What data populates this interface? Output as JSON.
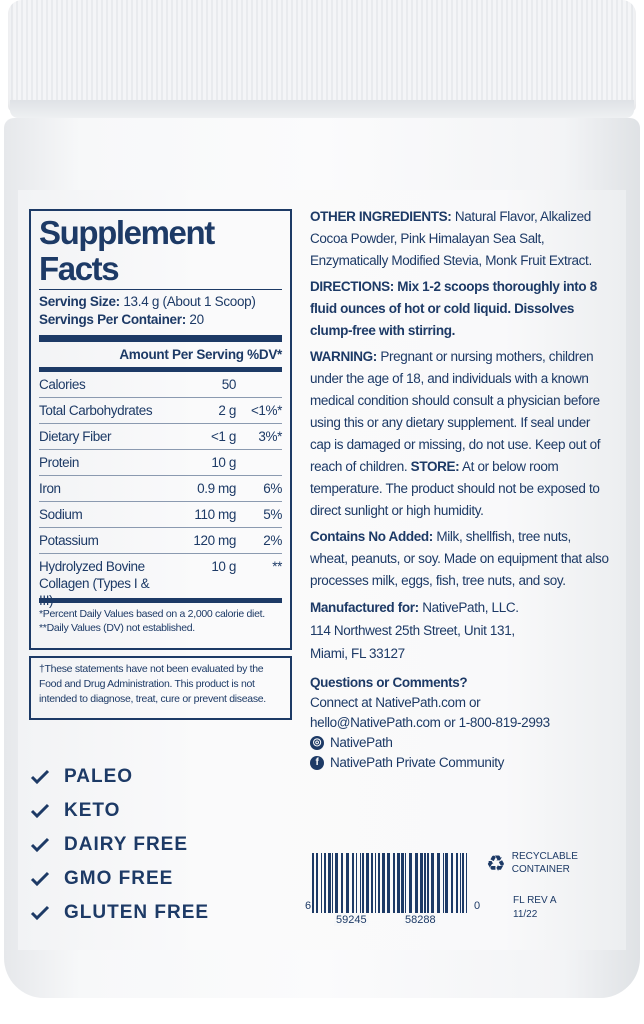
{
  "supplement_facts": {
    "title": "Supplement Facts",
    "serving_size_label": "Serving Size:",
    "serving_size": "13.4 g (About 1 Scoop)",
    "servings_label": "Servings Per Container:",
    "servings": "20",
    "header": "Amount Per Serving %DV*",
    "rows": [
      {
        "name": "Calories",
        "amount": "50",
        "dv": ""
      },
      {
        "name": "Total Carbohydrates",
        "amount": "2 g",
        "dv": "<1%*"
      },
      {
        "name": "Dietary Fiber",
        "amount": "<1 g",
        "dv": "3%*"
      },
      {
        "name": "Protein",
        "amount": "10 g",
        "dv": ""
      },
      {
        "name": "Iron",
        "amount": "0.9 mg",
        "dv": "6%"
      },
      {
        "name": "Sodium",
        "amount": "110 mg",
        "dv": "5%"
      },
      {
        "name": "Potassium",
        "amount": "120 mg",
        "dv": "2%"
      },
      {
        "name": "Hydrolyzed Bovine Collagen (Types I & III)",
        "amount": "10 g",
        "dv": "**"
      }
    ],
    "footnote1": "*Percent Daily Values based on a 2,000 calorie diet.",
    "footnote2": "**Daily Values (DV) not established."
  },
  "disclaimer": "†These statements have not been evaluated by the Food and Drug Administration. This product is not intended to diagnose, treat, cure or prevent disease.",
  "claims": [
    "PALEO",
    "KETO",
    "DAIRY FREE",
    "GMO FREE",
    "GLUTEN FREE"
  ],
  "info": {
    "other_label": "OTHER INGREDIENTS:",
    "other": " Natural Flavor, Alkalized Cocoa Powder, Pink Himalayan Sea Salt, Enzymatically Modified Stevia, Monk Fruit Extract.",
    "directions": "DIRECTIONS: Mix 1-2 scoops thoroughly into 8 fluid ounces of hot or cold liquid. Dissolves clump-free with stirring.",
    "warning_label": "WARNING:",
    "warning": " Pregnant or nursing mothers, children under the age of 18, and individuals with a known medical condition should consult a physician before using this or any dietary supplement. If seal under cap is damaged or missing, do not use. Keep out of reach of children. ",
    "store_label": "STORE:",
    "store": " At or below room temperature. The product should not be exposed to direct sunlight or high humidity.",
    "contains_label": "Contains No Added:",
    "contains": " Milk, shellfish, tree nuts, wheat, peanuts, or soy. Made on equipment that also processes milk, eggs, fish, tree nuts, and soy.",
    "mfg_label": "Manufactured for:",
    "mfg": " NativePath, LLC.",
    "address1": "114 Northwest 25th Street, Unit 131,",
    "address2": "Miami, FL 33127",
    "questions": "Questions or Comments?",
    "connect": "Connect at NativePath.com or",
    "contact": "hello@NativePath.com or 1-800-819-2993",
    "instagram": "NativePath",
    "facebook": "NativePath Private Community"
  },
  "barcode": {
    "d1": "6",
    "d2": "59245",
    "d3": "58288",
    "d4": "0"
  },
  "recycle": {
    "line1": "RECYCLABLE",
    "line2": "CONTAINER"
  },
  "revision": {
    "line1": "FL REV A",
    "line2": "11/22"
  },
  "colors": {
    "navy": "#1d3a66"
  }
}
